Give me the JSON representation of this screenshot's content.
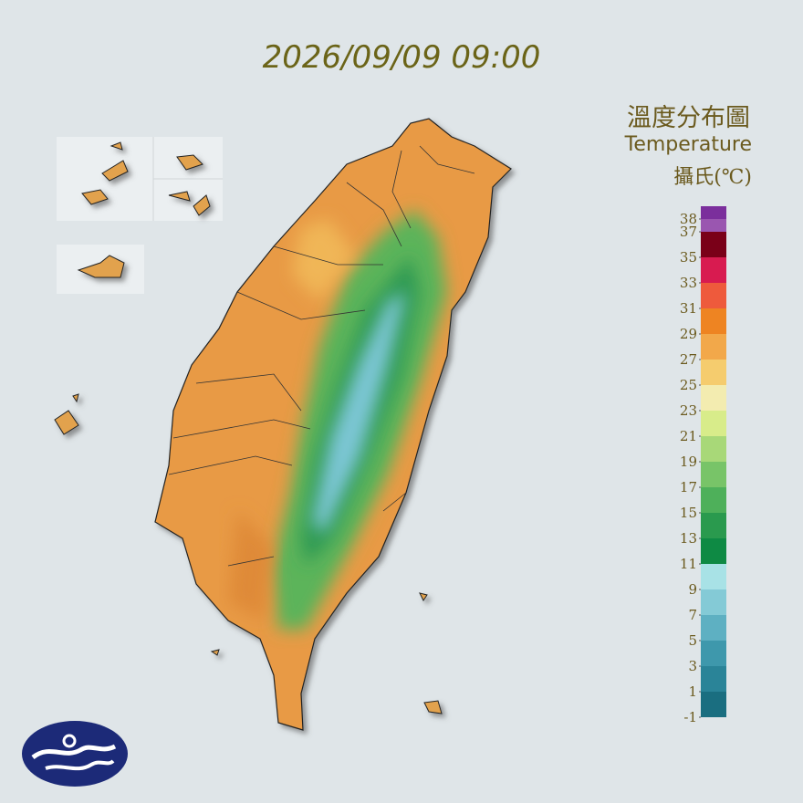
{
  "title": "2026/09/09 09:00",
  "legend": {
    "title": "溫度分布圖",
    "subtitle": "Temperature",
    "unit": "攝氏(℃)",
    "ticks": [
      38,
      37,
      35,
      33,
      31,
      29,
      27,
      25,
      23,
      21,
      19,
      17,
      15,
      13,
      11,
      9,
      7,
      5,
      3,
      1,
      -1
    ],
    "colors": [
      "#7b2f9c",
      "#9a56b0",
      "#7a0018",
      "#d81b50",
      "#ee5a3c",
      "#ee8422",
      "#f2a84a",
      "#f5cc6e",
      "#f3ecb0",
      "#d8ec8a",
      "#a8d878",
      "#78c468",
      "#4eb05a",
      "#2a9a4e",
      "#0e8a44",
      "#a8e2e6",
      "#84cad6",
      "#5eb0c2",
      "#3e98ac",
      "#2a8498",
      "#1a6e80"
    ]
  }
}
